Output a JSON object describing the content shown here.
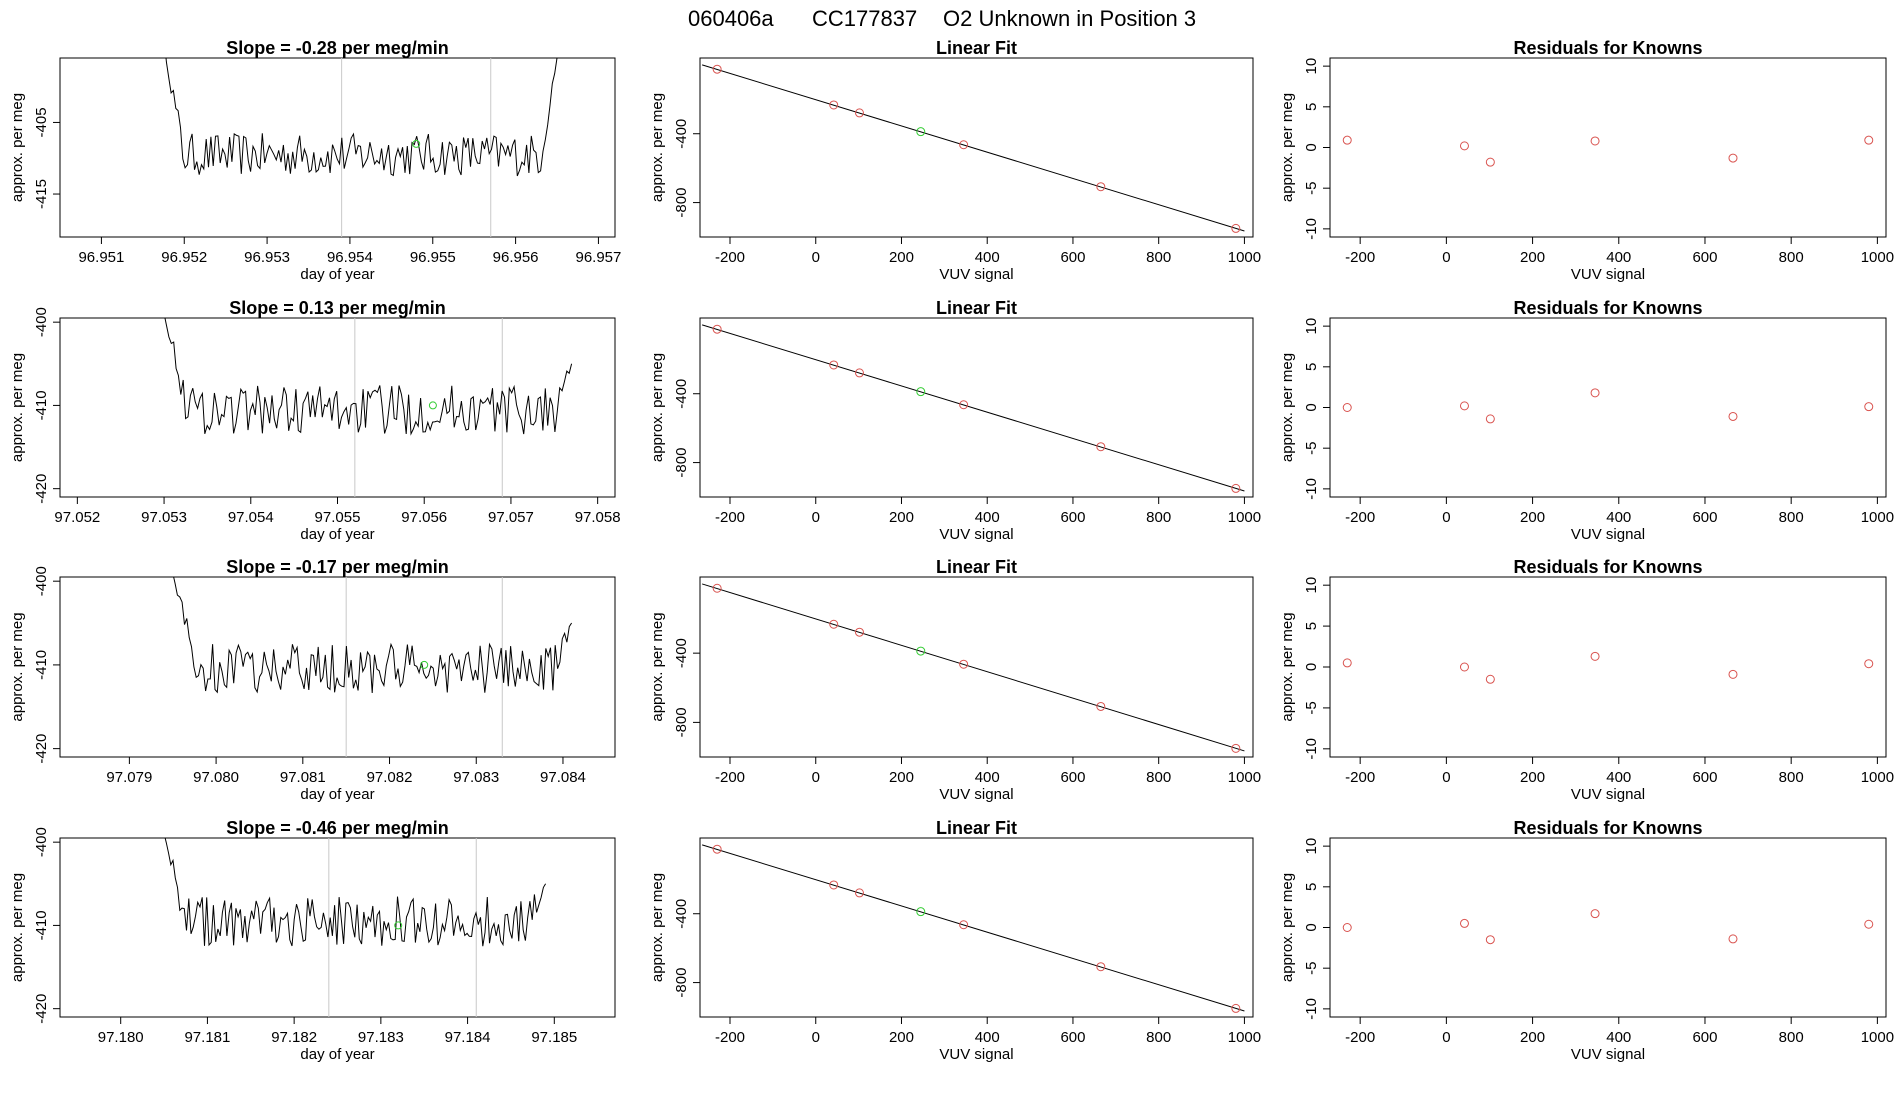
{
  "suptitle": {
    "date": "060406a",
    "tank": "CC177837",
    "desc": "O2 Unknown in Position  3"
  },
  "colors": {
    "known_point": "#d9534f",
    "unknown_point": "#33cc33",
    "line": "#000000",
    "guide_line": "#c8c8c8"
  },
  "chart_data": [
    {
      "type": "line",
      "title": "Slope =  -0.28  per meg/min",
      "xlabel": "day of year",
      "ylabel": "approx. per meg",
      "xlim": [
        96.9505,
        96.9572
      ],
      "ylim": [
        -421,
        -396
      ],
      "xticks": [
        "96.951",
        "96.952",
        "96.953",
        "96.954",
        "96.955",
        "96.956",
        "96.957"
      ],
      "yticks": [
        "-405",
        "-415"
      ],
      "vlines": [
        96.9539,
        96.9557
      ],
      "trace_x_range": [
        96.9517,
        96.9565
      ],
      "trace_noise_center": -409.5,
      "trace_noise_amplitude": 3,
      "trace_edge_value": -390,
      "unknown_point": {
        "x": 96.9548,
        "y": -408
      }
    },
    {
      "type": "line",
      "title": "Slope =  0.13  per meg/min",
      "xlabel": "day of year",
      "ylabel": "approx. per meg",
      "xlim": [
        97.0518,
        97.0582
      ],
      "ylim": [
        -421,
        -399.5
      ],
      "xticks": [
        "97.052",
        "97.053",
        "97.054",
        "97.055",
        "97.056",
        "97.057",
        "97.058"
      ],
      "yticks": [
        "-400",
        "-410",
        "-420"
      ],
      "vlines": [
        97.0552,
        97.0569
      ],
      "trace_x_range": [
        97.053,
        97.0577
      ],
      "trace_noise_center": -410.5,
      "trace_noise_amplitude": 3,
      "trace_edge_value": -399,
      "unknown_point": {
        "x": 97.0561,
        "y": -410
      }
    },
    {
      "type": "line",
      "title": "Slope =  -0.17  per meg/min",
      "xlabel": "day of year",
      "ylabel": "approx. per meg",
      "xlim": [
        97.0782,
        97.0846
      ],
      "ylim": [
        -421,
        -399.5
      ],
      "xticks": [
        "97.079",
        "97.080",
        "97.081",
        "97.082",
        "97.083",
        "97.084"
      ],
      "yticks": [
        "-400",
        "-410",
        "-420"
      ],
      "vlines": [
        97.0815,
        97.0833
      ],
      "trace_x_range": [
        97.0795,
        97.0841
      ],
      "trace_noise_center": -410.5,
      "trace_noise_amplitude": 3,
      "trace_edge_value": -399,
      "unknown_point": {
        "x": 97.0824,
        "y": -410
      }
    },
    {
      "type": "line",
      "title": "Slope =  -0.46  per meg/min",
      "xlabel": "day of year",
      "ylabel": "approx. per meg",
      "xlim": [
        97.1793,
        97.1857
      ],
      "ylim": [
        -421,
        -399.5
      ],
      "xticks": [
        "97.180",
        "97.181",
        "97.182",
        "97.183",
        "97.184",
        "97.185"
      ],
      "yticks": [
        "-400",
        "-410",
        "-420"
      ],
      "vlines": [
        97.1824,
        97.1841
      ],
      "trace_x_range": [
        97.1805,
        97.1849
      ],
      "trace_noise_center": -409.5,
      "trace_noise_amplitude": 3,
      "trace_edge_value": -399,
      "unknown_point": {
        "x": 97.1832,
        "y": -410
      }
    },
    {
      "type": "scatter",
      "title": "Linear Fit",
      "xlabel": "VUV signal",
      "ylabel": "approx. per meg",
      "xlim": [
        -270,
        1020
      ],
      "ylim": [
        -1000,
        40
      ],
      "xticks": [
        "-200",
        "0",
        "200",
        "400",
        "600",
        "800",
        "1000"
      ],
      "yticks": [
        "-400",
        "-800"
      ],
      "fit_line": {
        "x": [
          -265,
          1000
        ],
        "y": [
          0,
          -965
        ]
      },
      "known_points": {
        "x": [
          -230,
          42,
          102,
          345,
          665,
          980
        ],
        "y": [
          -25,
          -233,
          -279,
          -464,
          -708,
          -950
        ]
      },
      "unknown_point": {
        "x": 245,
        "y": -388
      }
    },
    {
      "type": "scatter",
      "title": "Linear Fit",
      "xlabel": "VUV signal",
      "ylabel": "approx. per meg",
      "xlim": [
        -270,
        1020
      ],
      "ylim": [
        -1000,
        40
      ],
      "xticks": [
        "-200",
        "0",
        "200",
        "400",
        "600",
        "800",
        "1000"
      ],
      "yticks": [
        "-400",
        "-800"
      ],
      "fit_line": {
        "x": [
          -265,
          1000
        ],
        "y": [
          0,
          -965
        ]
      },
      "known_points": {
        "x": [
          -230,
          42,
          102,
          345,
          665,
          980
        ],
        "y": [
          -25,
          -233,
          -279,
          -464,
          -708,
          -950
        ]
      },
      "unknown_point": {
        "x": 245,
        "y": -388
      }
    },
    {
      "type": "scatter",
      "title": "Linear Fit",
      "xlabel": "VUV signal",
      "ylabel": "approx. per meg",
      "xlim": [
        -270,
        1020
      ],
      "ylim": [
        -1000,
        40
      ],
      "xticks": [
        "-200",
        "0",
        "200",
        "400",
        "600",
        "800",
        "1000"
      ],
      "yticks": [
        "-400",
        "-800"
      ],
      "fit_line": {
        "x": [
          -265,
          1000
        ],
        "y": [
          0,
          -965
        ]
      },
      "known_points": {
        "x": [
          -230,
          42,
          102,
          345,
          665,
          980
        ],
        "y": [
          -25,
          -233,
          -279,
          -464,
          -708,
          -950
        ]
      },
      "unknown_point": {
        "x": 245,
        "y": -388
      }
    },
    {
      "type": "scatter",
      "title": "Linear Fit",
      "xlabel": "VUV signal",
      "ylabel": "approx. per meg",
      "xlim": [
        -270,
        1020
      ],
      "ylim": [
        -1000,
        40
      ],
      "xticks": [
        "-200",
        "0",
        "200",
        "400",
        "600",
        "800",
        "1000"
      ],
      "yticks": [
        "-400",
        "-800"
      ],
      "fit_line": {
        "x": [
          -265,
          1000
        ],
        "y": [
          0,
          -965
        ]
      },
      "known_points": {
        "x": [
          -230,
          42,
          102,
          345,
          665,
          980
        ],
        "y": [
          -25,
          -233,
          -279,
          -464,
          -708,
          -950
        ]
      },
      "unknown_point": {
        "x": 245,
        "y": -388
      }
    },
    {
      "type": "scatter",
      "title": "Residuals for Knowns",
      "xlabel": "VUV signal",
      "ylabel": "approx. per meg",
      "xlim": [
        -270,
        1020
      ],
      "ylim": [
        -11,
        11
      ],
      "xticks": [
        "-200",
        "0",
        "200",
        "400",
        "600",
        "800",
        "1000"
      ],
      "yticks": [
        "10",
        "5",
        "0",
        "-5",
        "-10"
      ],
      "known_points": {
        "x": [
          -230,
          42,
          102,
          345,
          665,
          980
        ],
        "y": [
          0.9,
          0.2,
          -1.8,
          0.8,
          -1.3,
          0.9
        ]
      }
    },
    {
      "type": "scatter",
      "title": "Residuals for Knowns",
      "xlabel": "VUV signal",
      "ylabel": "approx. per meg",
      "xlim": [
        -270,
        1020
      ],
      "ylim": [
        -11,
        11
      ],
      "xticks": [
        "-200",
        "0",
        "200",
        "400",
        "600",
        "800",
        "1000"
      ],
      "yticks": [
        "10",
        "5",
        "0",
        "-5",
        "-10"
      ],
      "known_points": {
        "x": [
          -230,
          42,
          102,
          345,
          665,
          980
        ],
        "y": [
          0,
          0.2,
          -1.4,
          1.8,
          -1.1,
          0.1
        ]
      }
    },
    {
      "type": "scatter",
      "title": "Residuals for Knowns",
      "xlabel": "VUV signal",
      "ylabel": "approx. per meg",
      "xlim": [
        -270,
        1020
      ],
      "ylim": [
        -11,
        11
      ],
      "xticks": [
        "-200",
        "0",
        "200",
        "400",
        "600",
        "800",
        "1000"
      ],
      "yticks": [
        "10",
        "5",
        "0",
        "-5",
        "-10"
      ],
      "known_points": {
        "x": [
          -230,
          42,
          102,
          345,
          665,
          980
        ],
        "y": [
          0.5,
          0,
          -1.5,
          1.3,
          -0.9,
          0.4
        ]
      }
    },
    {
      "type": "scatter",
      "title": "Residuals for Knowns",
      "xlabel": "VUV signal",
      "ylabel": "approx. per meg",
      "xlim": [
        -270,
        1020
      ],
      "ylim": [
        -11,
        11
      ],
      "xticks": [
        "-200",
        "0",
        "200",
        "400",
        "600",
        "800",
        "1000"
      ],
      "yticks": [
        "10",
        "5",
        "0",
        "-5",
        "-10"
      ],
      "known_points": {
        "x": [
          -230,
          42,
          102,
          345,
          665,
          980
        ],
        "y": [
          0,
          0.5,
          -1.5,
          1.7,
          -1.4,
          0.4
        ]
      }
    }
  ]
}
